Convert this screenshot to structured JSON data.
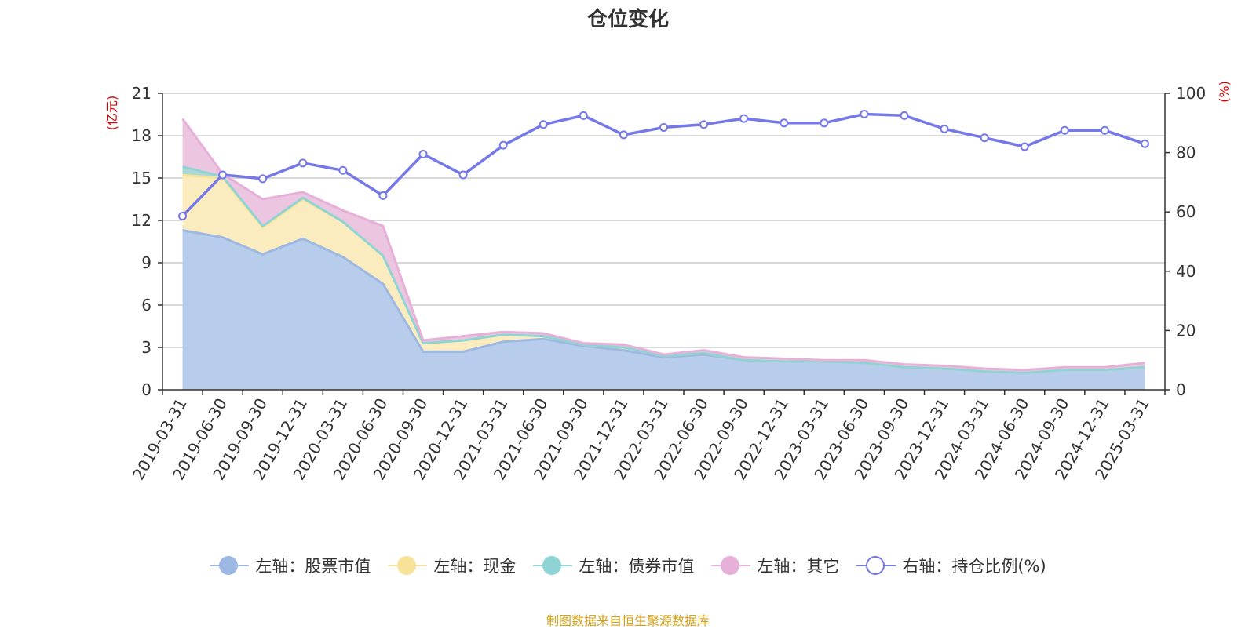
{
  "title": "仓位变化",
  "source": "制图数据来自恒生聚源数据库",
  "chart_data": {
    "type": "area",
    "stacked": true,
    "grid": true,
    "legend_position": "bottom",
    "categories": [
      "2019-03-31",
      "2019-06-30",
      "2019-09-30",
      "2019-12-31",
      "2020-03-31",
      "2020-06-30",
      "2020-09-30",
      "2020-12-31",
      "2021-03-31",
      "2021-06-30",
      "2021-09-30",
      "2021-12-31",
      "2022-03-31",
      "2022-06-30",
      "2022-09-30",
      "2022-12-31",
      "2023-03-31",
      "2023-06-30",
      "2023-09-30",
      "2023-12-31",
      "2024-03-31",
      "2024-06-30",
      "2024-09-30",
      "2024-12-31",
      "2025-03-31"
    ],
    "left_axis": {
      "label": "(亿元)",
      "ylim": [
        0,
        21
      ],
      "ticks": [
        "0",
        "3",
        "6",
        "9",
        "12",
        "15",
        "18",
        "21"
      ]
    },
    "right_axis": {
      "label": "(%)",
      "ylim": [
        0,
        100
      ],
      "ticks": [
        "0",
        "20",
        "40",
        "60",
        "80",
        "100"
      ]
    },
    "series": [
      {
        "name": "左轴：股票市值",
        "axis": "left",
        "type": "area",
        "color": "#9db8e2",
        "fill": "#b8cdeb",
        "values": [
          11.3,
          10.8,
          9.6,
          10.7,
          9.4,
          7.5,
          2.7,
          2.7,
          3.4,
          3.6,
          3.1,
          2.8,
          2.3,
          2.5,
          2.1,
          2.0,
          2.0,
          1.9,
          1.6,
          1.5,
          1.3,
          1.2,
          1.4,
          1.4,
          1.6
        ]
      },
      {
        "name": "左轴：现金",
        "axis": "left",
        "type": "area",
        "color": "#f7e29a",
        "fill": "#faecbe",
        "values": [
          3.9,
          4.2,
          1.9,
          2.8,
          2.5,
          2.0,
          0.6,
          0.8,
          0.5,
          0.2,
          0.1,
          0.2,
          0.1,
          0.1,
          0.0,
          0.0,
          0.0,
          0.0,
          0.0,
          0.0,
          0.0,
          0.0,
          0.0,
          0.0,
          0.0
        ]
      },
      {
        "name": "左轴：债券市值",
        "axis": "left",
        "type": "area",
        "color": "#8fd4d4",
        "fill": "#acd9d6",
        "values": [
          0.6,
          0.1,
          0.1,
          0.1,
          0.0,
          0.0,
          0.0,
          0.0,
          0.0,
          0.0,
          0.0,
          0.0,
          0.0,
          0.0,
          0.0,
          0.0,
          0.0,
          0.0,
          0.0,
          0.0,
          0.0,
          0.0,
          0.0,
          0.0,
          0.0
        ]
      },
      {
        "name": "左轴：其它",
        "axis": "left",
        "type": "area",
        "color": "#e6b0d9",
        "fill": "#ecc6e0",
        "values": [
          3.4,
          0.2,
          1.9,
          0.4,
          0.8,
          2.1,
          0.2,
          0.3,
          0.2,
          0.2,
          0.1,
          0.2,
          0.1,
          0.2,
          0.2,
          0.2,
          0.1,
          0.2,
          0.2,
          0.2,
          0.2,
          0.2,
          0.2,
          0.2,
          0.3
        ]
      },
      {
        "name": "右轴：持仓比例(%)",
        "axis": "right",
        "type": "line",
        "color": "#7478e8",
        "values": [
          58.6,
          72.5,
          71.2,
          76.5,
          74.0,
          65.5,
          79.5,
          72.5,
          82.5,
          89.5,
          92.5,
          86.0,
          88.5,
          89.5,
          91.5,
          90.0,
          90.0,
          93.0,
          92.5,
          88.0,
          85.0,
          82.0,
          87.5,
          87.5,
          83.0
        ]
      }
    ]
  }
}
